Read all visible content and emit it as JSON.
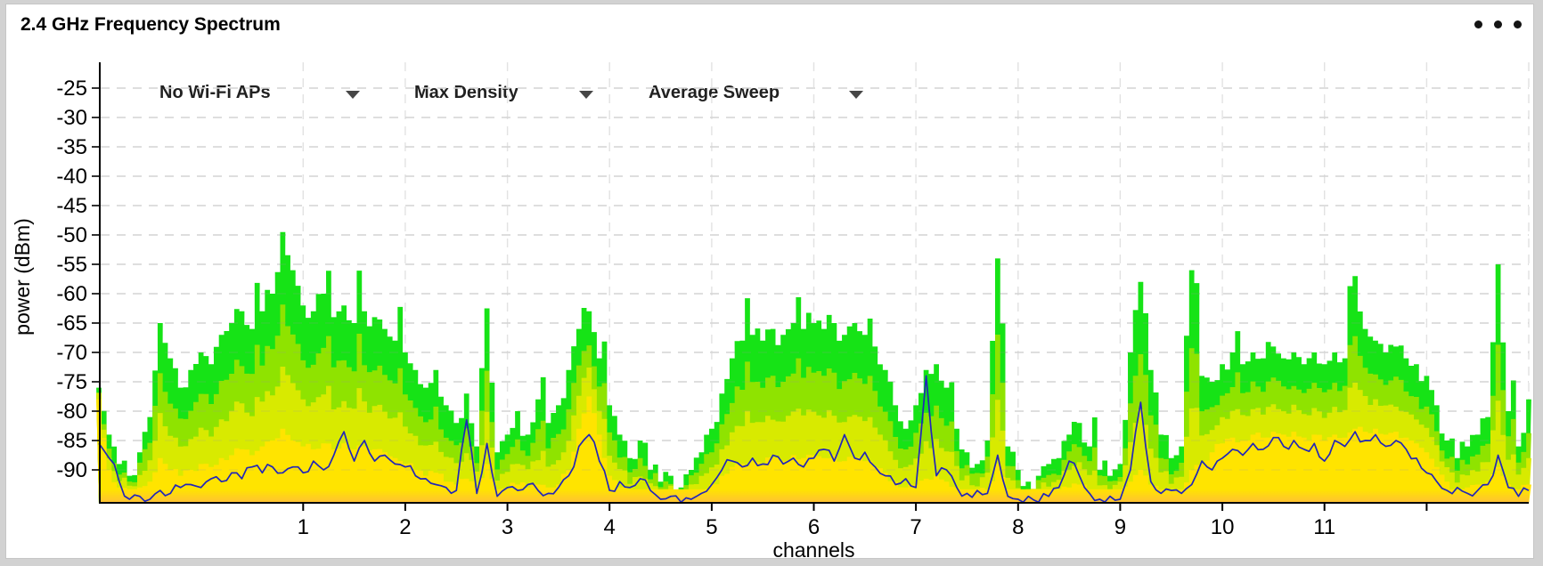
{
  "panel": {
    "title": "2.4 GHz Frequency Spectrum"
  },
  "controls": [
    {
      "label": "No Wi-Fi APs"
    },
    {
      "label": "Max Density"
    },
    {
      "label": "Average Sweep"
    }
  ],
  "chart_data": {
    "type": "area",
    "title": "2.4 GHz Frequency Spectrum",
    "xlabel": "channels",
    "ylabel": "power (dBm)",
    "x_unit": "wifi-channel",
    "x_start": -1.0,
    "x_step": 0.1,
    "ylim": [
      -96,
      -20
    ],
    "y_ticks": [
      -25,
      -30,
      -35,
      -40,
      -45,
      -50,
      -55,
      -60,
      -65,
      -70,
      -75,
      -80,
      -85,
      -90
    ],
    "x_ticks": [
      1,
      2,
      3,
      4,
      5,
      6,
      7,
      8,
      9,
      10,
      11
    ],
    "x_tick_marks": [
      1,
      2,
      3,
      4,
      5,
      6,
      7,
      8,
      9,
      10,
      11,
      12
    ],
    "x_gridline_channels": [
      1,
      2,
      3,
      4,
      5,
      6,
      7,
      8,
      9,
      10,
      11,
      12,
      13
    ],
    "grid": true,
    "legend": "none",
    "colors": {
      "max_hold": "#16e316",
      "density_mid_high": "#8fe300",
      "density_mid_low": "#d8ea00",
      "density_top": "#ffe400",
      "density_base": "#ffbe38",
      "average_sweep": "#2126b9",
      "gridline": "#e2e2e2",
      "axis": "#000000"
    },
    "series": [
      {
        "name": "max_hold_dbm",
        "color": "#16e316",
        "values": [
          -76,
          -84,
          -89,
          -91,
          -87,
          -81,
          -65,
          -71,
          -76,
          -73,
          -70,
          -72,
          -67,
          -65,
          -63,
          -66,
          -63,
          -60,
          -49.5,
          -56,
          -62,
          -63,
          -60,
          -64,
          -62,
          -65,
          -63,
          -64,
          -66,
          -68,
          -70,
          -73,
          -76,
          -73,
          -79,
          -82,
          -77,
          -86,
          -62.5,
          -87,
          -84,
          -80,
          -84,
          -78,
          -82,
          -79,
          -73,
          -66,
          -63,
          -71,
          -79,
          -84,
          -88,
          -85,
          -90,
          -92,
          -91,
          -93,
          -90,
          -87,
          -83,
          -77,
          -71,
          -68,
          -67,
          -68,
          -66,
          -67,
          -65,
          -66,
          -65,
          -66,
          -65,
          -67,
          -65,
          -67,
          -69,
          -73,
          -79,
          -83,
          -79,
          -73,
          -72,
          -76,
          -83,
          -87,
          -89,
          -85,
          -54,
          -86,
          -90,
          -92,
          -91,
          -89,
          -88,
          -84,
          -82,
          -86,
          -90,
          -91,
          -89,
          -70,
          -58,
          -73,
          -84,
          -88,
          -86,
          -56,
          -74,
          -75,
          -72,
          -70,
          -72,
          -70,
          -71,
          -69,
          -71,
          -70,
          -72,
          -70,
          -72,
          -70,
          -71,
          -57,
          -66,
          -68,
          -70,
          -69,
          -71,
          -72,
          -74,
          -79,
          -85,
          -88,
          -86,
          -84,
          -81,
          -55,
          -80,
          -86,
          -78
        ]
      },
      {
        "name": "density_top_dbm",
        "color": "#ffe400",
        "values": [
          -78,
          -90,
          -93,
          -93.5,
          -93,
          -92,
          -88,
          -90,
          -91,
          -90,
          -89,
          -89.5,
          -88,
          -87.5,
          -86.5,
          -87.5,
          -86,
          -85,
          -83,
          -85,
          -86,
          -86.5,
          -85.5,
          -86.5,
          -85.5,
          -86.5,
          -86,
          -86.5,
          -87,
          -88,
          -89,
          -90,
          -91,
          -90.5,
          -92,
          -92.5,
          -91.5,
          -93,
          -89,
          -93.5,
          -93,
          -92.5,
          -93,
          -92.5,
          -93,
          -92.5,
          -90,
          -83,
          -77.5,
          -84,
          -91,
          -93,
          -94,
          -93.5,
          -94,
          -94.5,
          -94,
          -94.5,
          -94,
          -93.5,
          -92.5,
          -91,
          -89.5,
          -89,
          -88.5,
          -89,
          -88,
          -88.5,
          -87.5,
          -88,
          -87.5,
          -88,
          -87.5,
          -88.5,
          -88,
          -88.5,
          -89.5,
          -90.5,
          -92,
          -93,
          -92.5,
          -91.5,
          -91,
          -92,
          -93,
          -93.5,
          -94,
          -93.5,
          -89,
          -94,
          -94.5,
          -94.5,
          -94.5,
          -94,
          -94,
          -93,
          -92.5,
          -93.5,
          -94,
          -94.5,
          -94,
          -92,
          -90,
          -92.5,
          -93.5,
          -94,
          -93.5,
          -90,
          -89,
          -87,
          -85.5,
          -84.5,
          -85,
          -84,
          -84.5,
          -83.5,
          -84,
          -83.5,
          -84.5,
          -84,
          -85,
          -84,
          -84.5,
          -83,
          -83.5,
          -83,
          -84,
          -83.5,
          -84.5,
          -85.5,
          -87,
          -89.5,
          -92,
          -93.5,
          -93,
          -92.5,
          -92,
          -89.5,
          -92.5,
          -93.5,
          -92.5
        ]
      },
      {
        "name": "average_sweep_dbm",
        "color": "#2126b9",
        "values": [
          -85.5,
          -88,
          -92,
          -95,
          -94.5,
          -95,
          -93.5,
          -94,
          -93,
          -92.5,
          -93,
          -91.5,
          -92,
          -90.5,
          -91.5,
          -89.5,
          -90.5,
          -89.5,
          -90.5,
          -89.5,
          -90.5,
          -88.5,
          -90,
          -87.5,
          -83.5,
          -88.5,
          -85,
          -88.5,
          -87.5,
          -89,
          -89.5,
          -91,
          -91.5,
          -92.5,
          -93,
          -93.5,
          -81.5,
          -94,
          -85.5,
          -94.5,
          -93,
          -93.5,
          -92.5,
          -93.5,
          -94,
          -93,
          -91,
          -86,
          -84,
          -88.5,
          -93.5,
          -92,
          -93,
          -91.5,
          -93.5,
          -95,
          -94.5,
          -95.5,
          -95,
          -94,
          -92.5,
          -90,
          -88.5,
          -89.5,
          -88,
          -89,
          -87.5,
          -89,
          -88,
          -89.5,
          -88,
          -86.5,
          -88.5,
          -84,
          -88,
          -87,
          -89.5,
          -91,
          -92.5,
          -91.5,
          -93,
          -74,
          -91,
          -90,
          -93,
          -94,
          -93.5,
          -94,
          -87.5,
          -94.5,
          -95,
          -94.5,
          -95.5,
          -94.5,
          -93,
          -88.5,
          -91,
          -94,
          -95,
          -94.5,
          -95,
          -90,
          -78.5,
          -92,
          -94,
          -93.5,
          -94,
          -92.5,
          -88.5,
          -90,
          -88,
          -86.5,
          -87.5,
          -85.5,
          -86.5,
          -84.5,
          -86,
          -85,
          -86.5,
          -85.5,
          -88.5,
          -85,
          -86,
          -83.5,
          -85,
          -84,
          -86,
          -85,
          -86.5,
          -88,
          -90.5,
          -92,
          -93.5,
          -93,
          -94,
          -93.5,
          -92.5,
          -87.5,
          -93,
          -94.5,
          -93.5
        ]
      }
    ]
  }
}
